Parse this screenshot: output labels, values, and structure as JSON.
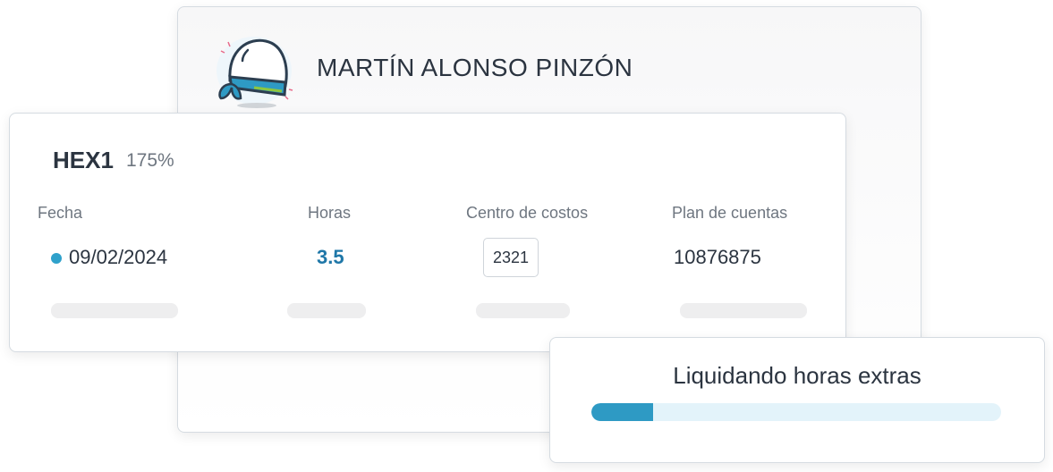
{
  "employee": {
    "name": "MARTÍN ALONSO PINZÓN",
    "avatar_icon": "bandana-helmet-icon"
  },
  "record": {
    "code": "HEX1",
    "percentage": "175%",
    "columns": [
      "Fecha",
      "Horas",
      "Centro de costos",
      "Plan de cuentas"
    ],
    "row": {
      "date": "09/02/2024",
      "hours": "3.5",
      "cost_center": "2321",
      "account": "10876875"
    },
    "status_dot_color": "#2fa1cb",
    "hours_color": "#1f77a8"
  },
  "progress": {
    "label": "Liquidando horas extras",
    "value_percent": 15,
    "color": "#2e9ac4",
    "track_color": "#e3f3fa"
  }
}
